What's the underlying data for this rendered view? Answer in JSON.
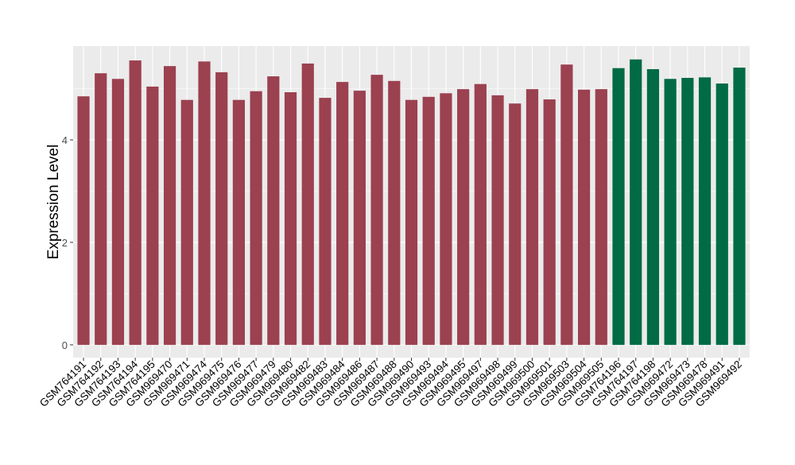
{
  "chart_data": {
    "type": "bar",
    "title": "",
    "xlabel": "",
    "ylabel": "Expression Level",
    "ylim": [
      -0.25,
      5.83
    ],
    "yticks": [
      0,
      2,
      4
    ],
    "grid": true,
    "colors": {
      "group1": "#9B4150",
      "group2": "#006B45",
      "panel": "#EBEBEB",
      "grid": "#FFFFFF"
    },
    "categories": [
      "GSM764191",
      "GSM764192",
      "GSM764193",
      "GSM764194",
      "GSM764195",
      "GSM969470",
      "GSM969471",
      "GSM969474",
      "GSM969475",
      "GSM969476",
      "GSM969477",
      "GSM969479",
      "GSM969480",
      "GSM969482",
      "GSM969483",
      "GSM969484",
      "GSM969486",
      "GSM969487",
      "GSM969488",
      "GSM969490",
      "GSM969493",
      "GSM969494",
      "GSM969495",
      "GSM969497",
      "GSM969498",
      "GSM969499",
      "GSM969500",
      "GSM969501",
      "GSM969503",
      "GSM969504",
      "GSM969505",
      "GSM764196",
      "GSM764197",
      "GSM764198",
      "GSM969472",
      "GSM969473",
      "GSM969478",
      "GSM969491",
      "GSM969492"
    ],
    "values": [
      4.85,
      5.3,
      5.19,
      5.55,
      5.04,
      5.44,
      4.78,
      5.53,
      5.32,
      4.78,
      4.95,
      5.24,
      4.93,
      5.49,
      4.82,
      5.13,
      4.96,
      5.27,
      5.15,
      4.78,
      4.84,
      4.91,
      4.99,
      5.09,
      4.87,
      4.71,
      4.99,
      4.79,
      5.47,
      4.98,
      4.99,
      5.4,
      5.57,
      5.38,
      5.19,
      5.21,
      5.22,
      5.1,
      5.41
    ],
    "groups": [
      1,
      1,
      1,
      1,
      1,
      1,
      1,
      1,
      1,
      1,
      1,
      1,
      1,
      1,
      1,
      1,
      1,
      1,
      1,
      1,
      1,
      1,
      1,
      1,
      1,
      1,
      1,
      1,
      1,
      1,
      1,
      2,
      2,
      2,
      2,
      2,
      2,
      2,
      2
    ]
  }
}
